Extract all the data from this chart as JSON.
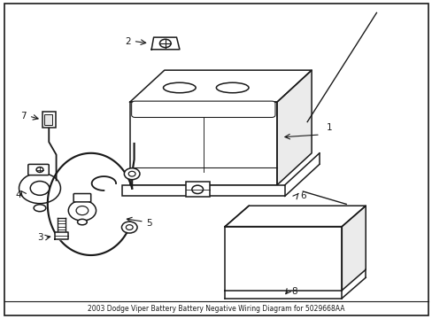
{
  "title": "2003 Dodge Viper Battery Battery Negative Wiring Diagram for 5029668AA",
  "background_color": "#ffffff",
  "line_color": "#1a1a1a",
  "line_width": 1.1,
  "label_fontsize": 7.5,
  "battery": {
    "bx": 0.3,
    "by": 0.42,
    "bw": 0.34,
    "bh": 0.26,
    "ox": 0.08,
    "oy": 0.1
  },
  "shield": {
    "sx": 0.52,
    "sy": 0.09,
    "sw": 0.27,
    "sh": 0.2,
    "sox": 0.055,
    "soy": 0.065
  }
}
